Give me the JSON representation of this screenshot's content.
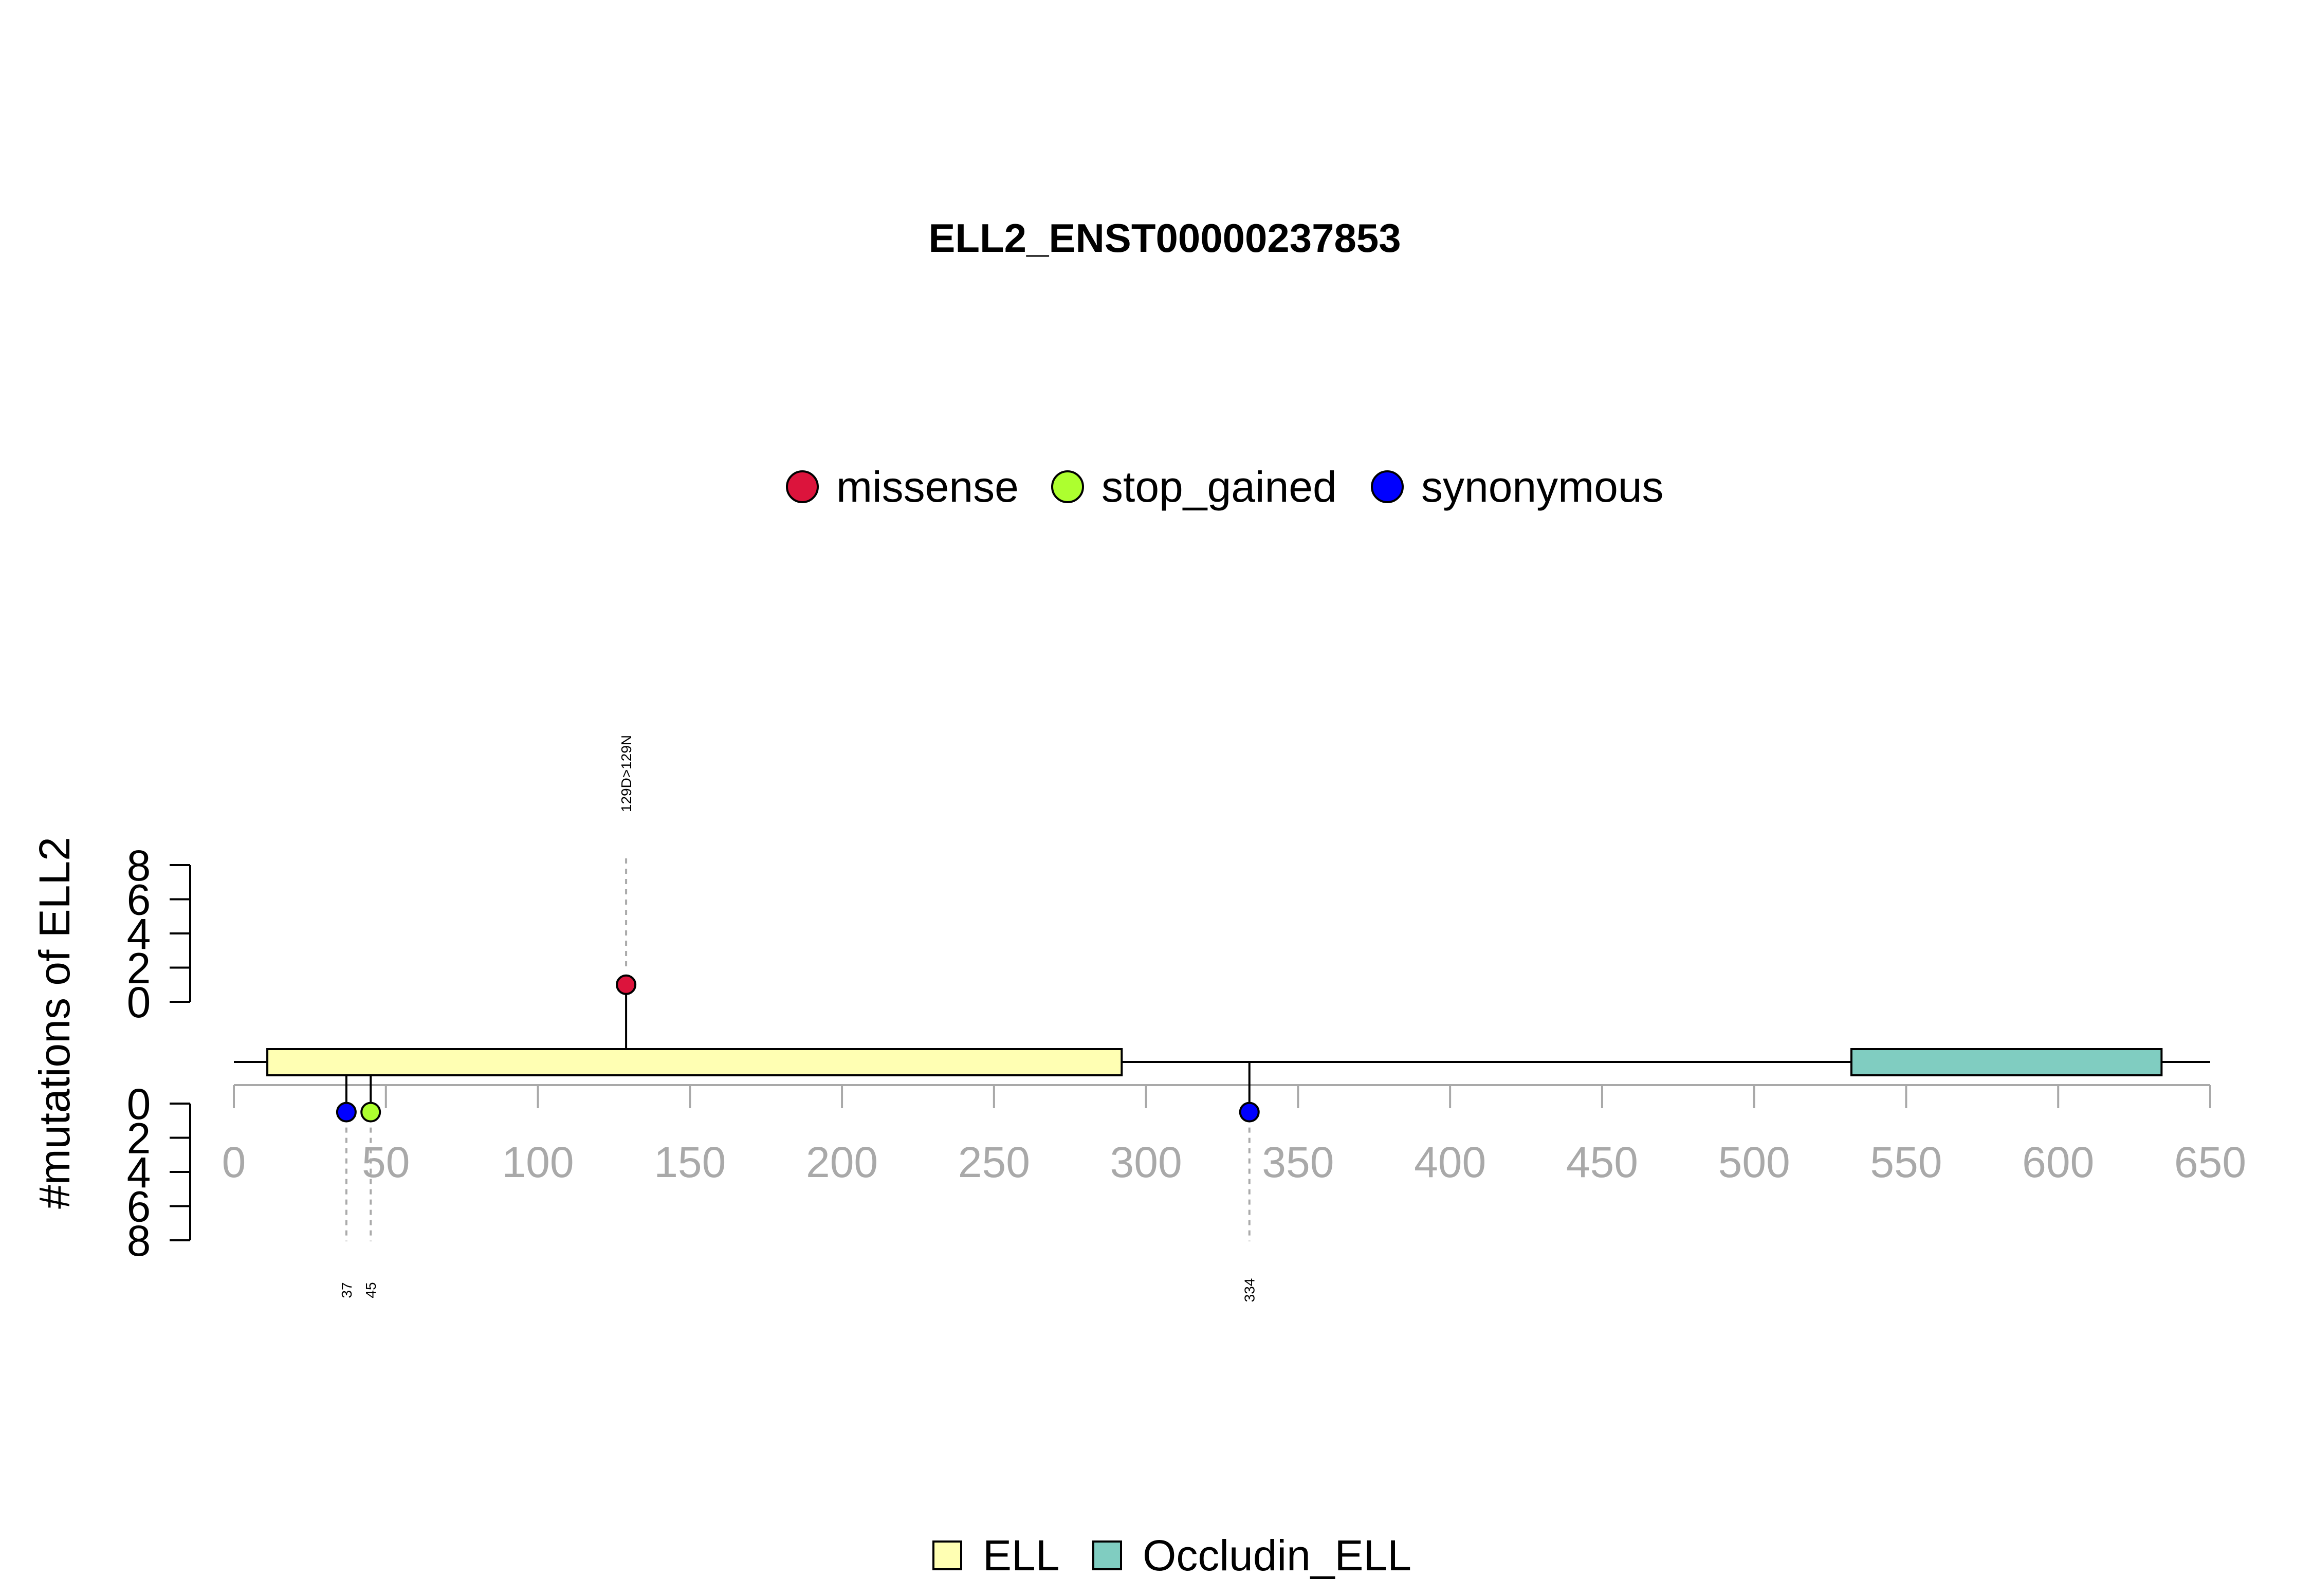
{
  "chart_data": {
    "type": "lollipop",
    "title": "ELL2_ENST00000237853",
    "ylabel": "#mutations of ELL2",
    "xlim": [
      0,
      650
    ],
    "x_ticks": [
      "0",
      "50",
      "100",
      "150",
      "200",
      "250",
      "300",
      "350",
      "400",
      "450",
      "500",
      "550",
      "600",
      "650"
    ],
    "y_ticks_top": [
      "0",
      "2",
      "4",
      "6",
      "8"
    ],
    "y_ticks_bottom": [
      "0",
      "2",
      "4",
      "6",
      "8"
    ],
    "mutation_legend": [
      {
        "name": "missense",
        "color": "#DC143C"
      },
      {
        "name": "stop_gained",
        "color": "#ADFF2F"
      },
      {
        "name": "synonymous",
        "color": "#0000FF"
      }
    ],
    "domain_legend": [
      {
        "name": "ELL",
        "color": "#FFFFB3"
      },
      {
        "name": "Occludin_ELL",
        "color": "#80CDC1"
      }
    ],
    "domains": [
      {
        "name": "ELL",
        "start": 11,
        "end": 292,
        "color": "#FFFFB3"
      },
      {
        "name": "Occludin_ELL",
        "start": 532,
        "end": 634,
        "color": "#80CDC1"
      }
    ],
    "mutations": [
      {
        "position": 37,
        "label": "37",
        "type": "synonymous",
        "side": "bottom",
        "count": 1
      },
      {
        "position": 45,
        "label": "45",
        "type": "stop_gained",
        "side": "bottom",
        "count": 1
      },
      {
        "position": 129,
        "label": "129D>129N",
        "type": "missense",
        "side": "top",
        "count": 1
      },
      {
        "position": 334,
        "label": "334",
        "type": "synonymous",
        "side": "bottom",
        "count": 1
      }
    ]
  }
}
